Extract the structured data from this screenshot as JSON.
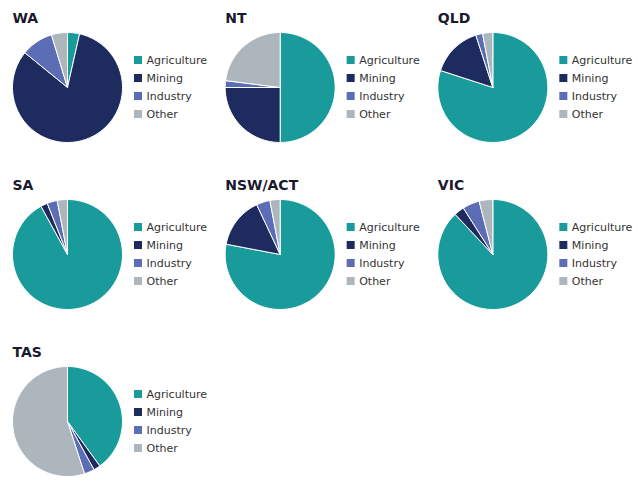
{
  "chart_data": [
    {
      "type": "pie",
      "title": "WA",
      "categories": [
        "Agriculture",
        "Mining",
        "Industry",
        "Other"
      ],
      "values": [
        3,
        70,
        8,
        4
      ],
      "colors": [
        "#1a9b9b",
        "#1e2b5e",
        "#5b6db5",
        "#adb5bd"
      ],
      "legend": "right"
    },
    {
      "type": "pie",
      "title": "NT",
      "categories": [
        "Agriculture",
        "Mining",
        "Industry",
        "Other"
      ],
      "values": [
        50,
        25,
        2,
        23
      ],
      "colors": [
        "#1a9b9b",
        "#1e2b5e",
        "#5b6db5",
        "#adb5bd"
      ],
      "legend": "right"
    },
    {
      "type": "pie",
      "title": "QLD",
      "categories": [
        "Agriculture",
        "Mining",
        "Industry",
        "Other"
      ],
      "values": [
        80,
        15,
        2,
        3
      ],
      "colors": [
        "#1a9b9b",
        "#1e2b5e",
        "#5b6db5",
        "#adb5bd"
      ],
      "legend": "right"
    },
    {
      "type": "pie",
      "title": "SA",
      "categories": [
        "Agriculture",
        "Mining",
        "Industry",
        "Other"
      ],
      "values": [
        92,
        2,
        3,
        3
      ],
      "colors": [
        "#1a9b9b",
        "#1e2b5e",
        "#5b6db5",
        "#adb5bd"
      ],
      "legend": "right"
    },
    {
      "type": "pie",
      "title": "NSW/ACT",
      "categories": [
        "Agriculture",
        "Mining",
        "Industry",
        "Other"
      ],
      "values": [
        78,
        15,
        4,
        3
      ],
      "colors": [
        "#1a9b9b",
        "#1e2b5e",
        "#5b6db5",
        "#adb5bd"
      ],
      "legend": "right"
    },
    {
      "type": "pie",
      "title": "VIC",
      "categories": [
        "Agriculture",
        "Mining",
        "Industry",
        "Other"
      ],
      "values": [
        88,
        3,
        5,
        4
      ],
      "colors": [
        "#1a9b9b",
        "#1e2b5e",
        "#5b6db5",
        "#adb5bd"
      ],
      "legend": "right"
    },
    {
      "type": "pie",
      "title": "TAS",
      "categories": [
        "Agriculture",
        "Mining",
        "Industry",
        "Other"
      ],
      "values": [
        40,
        2,
        3,
        55
      ],
      "colors": [
        "#1a9b9b",
        "#1e2b5e",
        "#5b6db5",
        "#adb5bd"
      ],
      "legend": "right"
    }
  ]
}
